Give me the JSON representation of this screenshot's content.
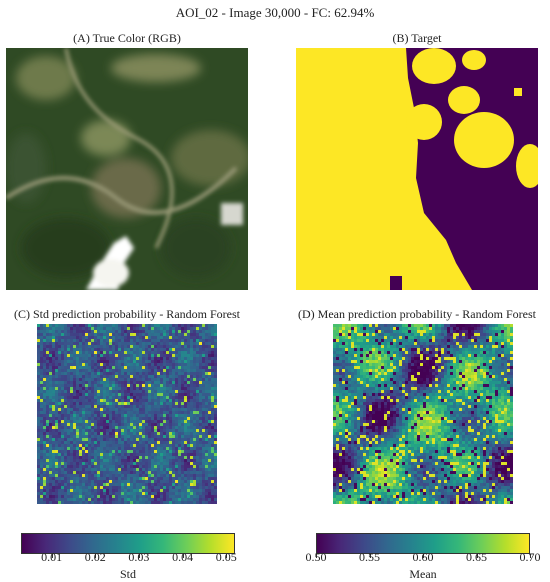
{
  "figure": {
    "title": "AOI_02 - Image 30,000 - FC: 62.94%"
  },
  "panels": {
    "a": {
      "title": "(A) True Color (RGB)"
    },
    "b": {
      "title": "(B) Target"
    },
    "c": {
      "title": "(C) Std prediction probability - Random Forest"
    },
    "d": {
      "title": "(D) Mean prediction probability - Random Forest"
    }
  },
  "colorbars": {
    "std": {
      "label": "Std",
      "range": [
        0.003,
        0.052
      ],
      "ticks": [
        "0.01",
        "0.02",
        "0.03",
        "0.04",
        "0.05"
      ]
    },
    "mean": {
      "label": "Mean",
      "range": [
        0.5,
        0.7
      ],
      "ticks": [
        "0.50",
        "0.55",
        "0.60",
        "0.65",
        "0.70"
      ]
    }
  },
  "colors": {
    "viridis_low": "#440154",
    "viridis_mid": "#21918c",
    "viridis_high": "#fde725",
    "target_forest": "#fde725",
    "target_nonforest": "#440154",
    "rgb_vegetation": "#2f4a24"
  }
}
